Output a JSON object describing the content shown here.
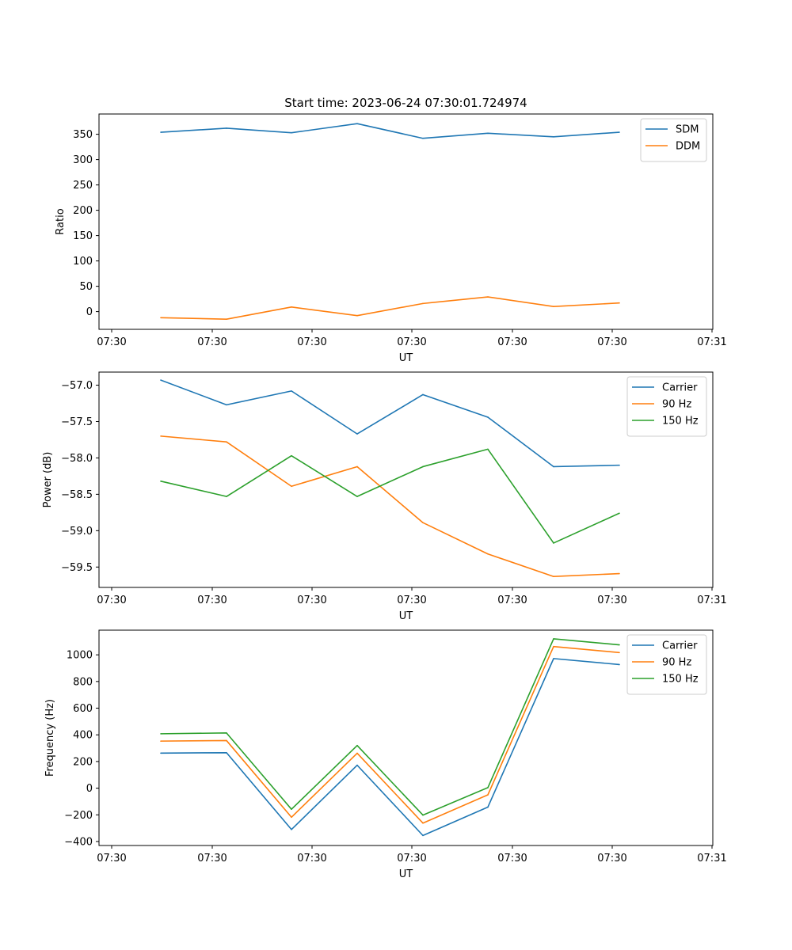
{
  "figure_title": "Start time: 2023-06-24 07:30:01.724974",
  "colors": {
    "blue": "#1f77b4",
    "orange": "#ff7f0e",
    "green": "#2ca02c"
  },
  "chart_data": [
    {
      "type": "line",
      "title": "Start time: 2023-06-24 07:30:01.724974",
      "xlabel": "UT",
      "ylabel": "Ratio",
      "x_tick_labels": [
        "07:30",
        "07:30",
        "07:30",
        "07:30",
        "07:30",
        "07:30",
        "07:30",
        "07:31"
      ],
      "x_note": "8 samples at evenly spaced times between the 2nd and 6th major tick",
      "xlim": [
        0,
        10
      ],
      "ylim": [
        -35,
        390
      ],
      "y_ticks": [
        0,
        50,
        100,
        150,
        200,
        250,
        300,
        350
      ],
      "legend": "top-right",
      "grid": false,
      "x": [
        1,
        2,
        3,
        4,
        5,
        6,
        7,
        8
      ],
      "series": [
        {
          "name": "SDM",
          "color": "#1f77b4",
          "values": [
            354,
            362,
            353,
            371,
            342,
            352,
            345,
            354
          ]
        },
        {
          "name": "DDM",
          "color": "#ff7f0e",
          "values": [
            -12,
            -15,
            9,
            -8,
            16,
            29,
            10,
            17
          ]
        }
      ]
    },
    {
      "type": "line",
      "title": "",
      "xlabel": "UT",
      "ylabel": "Power (dB)",
      "x_tick_labels": [
        "07:30",
        "07:30",
        "07:30",
        "07:30",
        "07:30",
        "07:30",
        "07:30",
        "07:31"
      ],
      "xlim": [
        0,
        10
      ],
      "ylim": [
        -59.78,
        -56.82
      ],
      "y_ticks": [
        -59.5,
        -59.0,
        -58.5,
        -58.0,
        -57.5,
        -57.0
      ],
      "legend": "top-right",
      "grid": false,
      "x": [
        1,
        2,
        3,
        4,
        5,
        6,
        7,
        8
      ],
      "series": [
        {
          "name": "Carrier",
          "color": "#1f77b4",
          "values": [
            -56.93,
            -57.27,
            -57.08,
            -57.67,
            -57.13,
            -57.44,
            -58.12,
            -58.1
          ]
        },
        {
          "name": "90 Hz",
          "color": "#ff7f0e",
          "values": [
            -57.7,
            -57.78,
            -58.39,
            -58.12,
            -58.89,
            -59.32,
            -59.63,
            -59.59
          ]
        },
        {
          "name": "150 Hz",
          "color": "#2ca02c",
          "values": [
            -58.32,
            -58.53,
            -57.97,
            -58.53,
            -58.12,
            -57.88,
            -59.17,
            -58.76
          ]
        }
      ]
    },
    {
      "type": "line",
      "title": "",
      "xlabel": "UT",
      "ylabel": "Frequency (Hz)",
      "x_tick_labels": [
        "07:30",
        "07:30",
        "07:30",
        "07:30",
        "07:30",
        "07:30",
        "07:30",
        "07:31"
      ],
      "xlim": [
        0,
        10
      ],
      "ylim": [
        -430,
        1185
      ],
      "y_ticks": [
        -400,
        -200,
        0,
        200,
        400,
        600,
        800,
        1000
      ],
      "legend": "top-right",
      "grid": false,
      "x": [
        1,
        2,
        3,
        4,
        5,
        6,
        7,
        8
      ],
      "series": [
        {
          "name": "Carrier",
          "color": "#1f77b4",
          "values": [
            263,
            266,
            -310,
            172,
            -355,
            -142,
            972,
            927
          ]
        },
        {
          "name": "90 Hz",
          "color": "#ff7f0e",
          "values": [
            353,
            357,
            -218,
            262,
            -262,
            -50,
            1062,
            1017
          ]
        },
        {
          "name": "150 Hz",
          "color": "#2ca02c",
          "values": [
            408,
            414,
            -158,
            320,
            -202,
            4,
            1120,
            1075
          ]
        }
      ]
    }
  ]
}
